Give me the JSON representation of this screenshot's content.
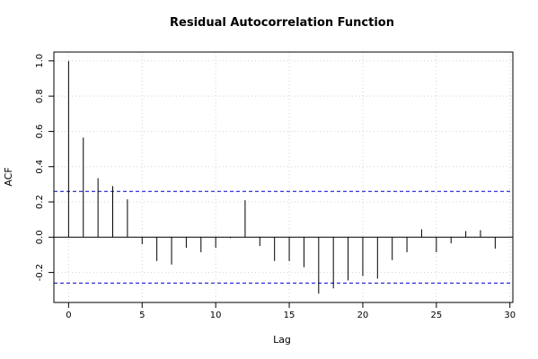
{
  "chart_data": {
    "type": "bar",
    "title": "Residual Autocorrelation Function",
    "xlabel": "Lag",
    "ylabel": "ACF",
    "x": [
      0,
      1,
      2,
      3,
      4,
      5,
      6,
      7,
      8,
      9,
      10,
      11,
      12,
      13,
      14,
      15,
      16,
      17,
      18,
      19,
      20,
      21,
      22,
      23,
      24,
      25,
      26,
      27,
      28,
      29
    ],
    "values": [
      1.0,
      0.565,
      0.335,
      0.29,
      0.215,
      -0.04,
      -0.135,
      -0.155,
      -0.06,
      -0.085,
      -0.06,
      -0.005,
      0.21,
      -0.05,
      -0.135,
      -0.135,
      -0.17,
      -0.32,
      -0.29,
      -0.245,
      -0.22,
      -0.235,
      -0.13,
      -0.085,
      0.045,
      -0.085,
      -0.035,
      0.035,
      0.04,
      -0.065
    ],
    "conf_bounds": [
      0.26,
      -0.26
    ],
    "xlim": [
      -1,
      30.2
    ],
    "ylim": [
      -0.37,
      1.05
    ],
    "xticks": [
      0,
      5,
      10,
      15,
      20,
      25,
      30
    ],
    "yticks": [
      -0.2,
      0.0,
      0.2,
      0.4,
      0.6,
      0.8,
      1.0
    ],
    "ytick_labels": [
      "-0.2",
      "0.0",
      "0.2",
      "0.4",
      "0.6",
      "0.8",
      "1.0"
    ],
    "grid": true,
    "colors": {
      "bars": "#000000",
      "conf_line": "#0000cc",
      "zero_line": "#000000",
      "grid": "#d3d3d3"
    }
  }
}
